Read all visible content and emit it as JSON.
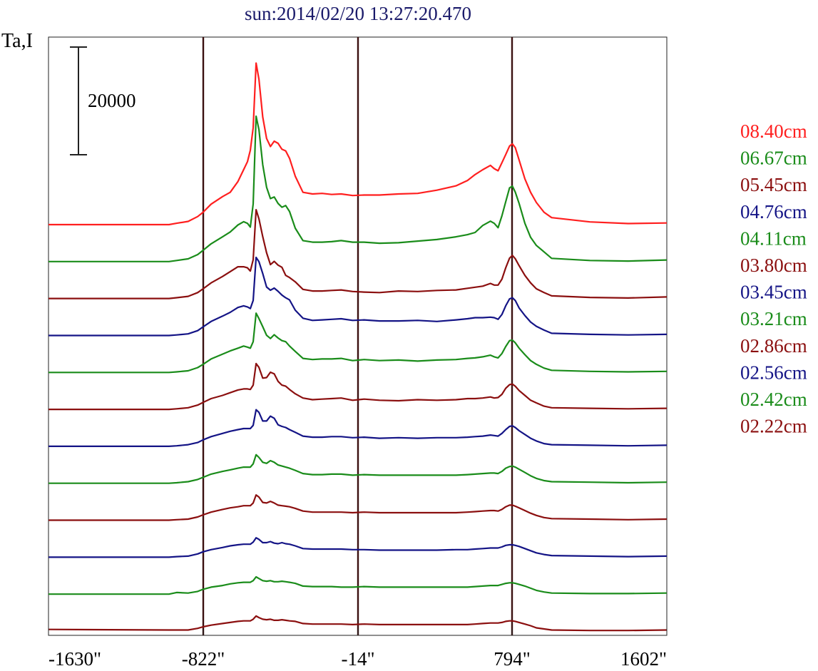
{
  "title": "sun:2014/02/20 13:27:20.470",
  "chart_data": {
    "type": "line",
    "title": "sun:2014/02/20 13:27:20.470",
    "ylabel": "Ta,I",
    "xlabel": "",
    "x_ticks": [
      "-1630\"",
      "-822\"",
      "-14\"",
      "794\"",
      "1602\""
    ],
    "x_tick_values": [
      -1630,
      -822,
      -14,
      794,
      1602
    ],
    "xlim": [
      -1630,
      1602
    ],
    "vertical_markers": [
      -822,
      -14,
      794
    ],
    "scale_bar": {
      "label": "20000",
      "value": 20000
    },
    "baseline_offset_between_series": 3000,
    "profile_x": [
      -1630,
      -1000,
      -960,
      -900,
      -850,
      -822,
      -780,
      -720,
      -680,
      -640,
      -610,
      -590,
      -575,
      -560,
      -545,
      -530,
      -510,
      -490,
      -470,
      -450,
      -430,
      -410,
      -390,
      -370,
      -340,
      -300,
      -250,
      -200,
      -150,
      -100,
      -40,
      20,
      100,
      200,
      300,
      400,
      500,
      560,
      600,
      640,
      680,
      700,
      720,
      740,
      760,
      780,
      795,
      810,
      830,
      860,
      890,
      920,
      960,
      1000,
      1200,
      1400,
      1602
    ],
    "series": [
      {
        "name": "08.40cm",
        "color": "#ff1f1f",
        "peak_a": 30000,
        "peak_b": 15000,
        "baseline": 0,
        "values": [
          0,
          0,
          250,
          600,
          1500,
          2300,
          3800,
          5200,
          6000,
          8000,
          10200,
          11700,
          13800,
          18000,
          30000,
          27000,
          20000,
          16000,
          14500,
          15500,
          15100,
          14000,
          13700,
          12300,
          9000,
          6000,
          5700,
          5800,
          5600,
          5700,
          5400,
          5500,
          5500,
          5700,
          5800,
          6400,
          7200,
          8200,
          9300,
          10200,
          11000,
          10400,
          10000,
          11500,
          13000,
          14600,
          15000,
          14300,
          12000,
          8500,
          6000,
          4100,
          2300,
          1300,
          500,
          200,
          300
        ]
      },
      {
        "name": "06.67cm",
        "color": "#1a8c1a",
        "peak_a": 27000,
        "peak_b": 14000,
        "baseline": 3000,
        "values": [
          0,
          0,
          200,
          500,
          1300,
          2100,
          3300,
          4600,
          5500,
          6800,
          7400,
          7100,
          6400,
          10700,
          27000,
          24500,
          18000,
          13800,
          11700,
          12000,
          10800,
          10100,
          10400,
          9300,
          6200,
          3900,
          3600,
          3600,
          3700,
          3900,
          3600,
          3600,
          3400,
          3500,
          3800,
          4100,
          4600,
          5000,
          5400,
          6700,
          7500,
          7100,
          6300,
          8500,
          11100,
          13700,
          14000,
          12900,
          10800,
          7100,
          4500,
          3000,
          1800,
          600,
          200,
          100,
          300
        ]
      },
      {
        "name": "05.45cm",
        "color": "#8b0f0f",
        "peak_a": 16500,
        "peak_b": 8000,
        "baseline": 6000,
        "values": [
          0,
          0,
          150,
          400,
          1100,
          1800,
          2900,
          4100,
          5000,
          5900,
          5900,
          5700,
          5100,
          7200,
          16500,
          14800,
          11500,
          8500,
          6300,
          6900,
          6200,
          5800,
          4300,
          3900,
          3100,
          1700,
          1400,
          1400,
          1500,
          1600,
          1300,
          1200,
          1100,
          1400,
          1300,
          1500,
          1600,
          1900,
          2100,
          2300,
          2800,
          2500,
          2500,
          3600,
          5700,
          7500,
          8000,
          7400,
          6100,
          4300,
          2900,
          1800,
          1100,
          500,
          200,
          100,
          300
        ]
      },
      {
        "name": "04.76cm",
        "color": "#141486",
        "peak_a": 14500,
        "peak_b": 7000,
        "baseline": 9000,
        "values": [
          0,
          0,
          100,
          300,
          900,
          1600,
          2600,
          3600,
          4300,
          5200,
          5500,
          5300,
          5000,
          6500,
          14500,
          13700,
          11500,
          9000,
          8400,
          8800,
          8200,
          7500,
          7000,
          6600,
          4700,
          3200,
          2800,
          2900,
          3000,
          3100,
          2800,
          2900,
          2700,
          2700,
          2800,
          2600,
          2900,
          3100,
          3300,
          3300,
          3400,
          3300,
          3000,
          3900,
          5500,
          6800,
          7000,
          6500,
          5100,
          3700,
          2500,
          1700,
          1000,
          400,
          200,
          100,
          200
        ]
      },
      {
        "name": "04.11cm",
        "color": "#1a8c1a",
        "peak_a": 11000,
        "peak_b": 6000,
        "baseline": 12000,
        "values": [
          0,
          0,
          100,
          300,
          900,
          1500,
          2500,
          3400,
          4000,
          4500,
          4900,
          4700,
          4500,
          5700,
          11000,
          10000,
          8500,
          6900,
          6300,
          7000,
          6400,
          5900,
          5700,
          4900,
          3900,
          2600,
          2400,
          2500,
          2500,
          2600,
          2200,
          2400,
          2200,
          2300,
          2100,
          2300,
          2400,
          2600,
          2700,
          2900,
          3200,
          2900,
          2700,
          3500,
          4800,
          5900,
          6000,
          5500,
          4500,
          3300,
          2200,
          1500,
          800,
          400,
          200,
          100,
          200
        ]
      },
      {
        "name": "03.80cm",
        "color": "#8b0f0f",
        "peak_a": 8500,
        "peak_b": 4700,
        "baseline": 15000,
        "values": [
          0,
          0,
          100,
          300,
          800,
          1300,
          2000,
          2600,
          3100,
          3600,
          3800,
          3800,
          3700,
          4500,
          8500,
          7800,
          5800,
          5900,
          6900,
          6600,
          5200,
          4500,
          4300,
          3700,
          2900,
          2100,
          1800,
          1900,
          2000,
          2100,
          1700,
          1900,
          1700,
          1600,
          1800,
          1700,
          1800,
          2000,
          2000,
          2100,
          2300,
          2100,
          2200,
          2800,
          3900,
          4600,
          4700,
          4300,
          3500,
          2600,
          1700,
          1200,
          600,
          300,
          200,
          100,
          200
        ]
      },
      {
        "name": "03.45cm",
        "color": "#141486",
        "peak_a": 6800,
        "peak_b": 3800,
        "baseline": 18000,
        "values": [
          0,
          0,
          100,
          300,
          700,
          1200,
          1800,
          2400,
          2800,
          3100,
          3300,
          3300,
          3300,
          3900,
          6800,
          6300,
          4700,
          4700,
          5600,
          5200,
          4000,
          3700,
          3500,
          3100,
          2600,
          1900,
          1700,
          1700,
          1800,
          1800,
          1600,
          1700,
          1500,
          1600,
          1500,
          1600,
          1600,
          1700,
          1800,
          1900,
          2100,
          2000,
          1900,
          2400,
          3100,
          3700,
          3800,
          3500,
          2900,
          2200,
          1500,
          1000,
          500,
          300,
          200,
          100,
          200
        ]
      },
      {
        "name": "03.21cm",
        "color": "#1a8c1a",
        "peak_a": 5300,
        "peak_b": 3200,
        "baseline": 21000,
        "values": [
          0,
          0,
          100,
          300,
          700,
          1100,
          1700,
          2200,
          2500,
          2800,
          3000,
          3000,
          3000,
          3600,
          5300,
          4800,
          3900,
          3700,
          4200,
          3900,
          3400,
          3200,
          3000,
          2800,
          2400,
          1800,
          1600,
          1600,
          1700,
          1700,
          1500,
          1600,
          1500,
          1500,
          1500,
          1500,
          1500,
          1600,
          1700,
          1800,
          1900,
          1900,
          1800,
          2200,
          2800,
          3100,
          3200,
          3000,
          2600,
          2000,
          1400,
          900,
          500,
          300,
          200,
          100,
          200
        ]
      },
      {
        "name": "02.86cm",
        "color": "#8b0f0f",
        "peak_a": 4700,
        "peak_b": 2800,
        "baseline": 24000,
        "values": [
          0,
          0,
          100,
          200,
          600,
          1000,
          1500,
          2000,
          2300,
          2500,
          2700,
          2700,
          2700,
          3200,
          4700,
          4300,
          3300,
          3200,
          3500,
          3200,
          2800,
          2700,
          2600,
          2500,
          2200,
          1700,
          1500,
          1500,
          1500,
          1500,
          1400,
          1500,
          1400,
          1400,
          1400,
          1400,
          1400,
          1500,
          1600,
          1700,
          1800,
          1800,
          1700,
          2000,
          2500,
          2800,
          2800,
          2600,
          2300,
          1800,
          1300,
          900,
          500,
          300,
          200,
          100,
          200
        ]
      },
      {
        "name": "02.56cm",
        "color": "#141486",
        "peak_a": 3600,
        "peak_b": 2300,
        "baseline": 27000,
        "values": [
          0,
          0,
          100,
          200,
          600,
          1000,
          1400,
          1800,
          2100,
          2300,
          2400,
          2400,
          2400,
          2800,
          3600,
          3300,
          2700,
          2700,
          2900,
          2600,
          2500,
          2700,
          2500,
          2400,
          2100,
          1600,
          1500,
          1500,
          1500,
          1500,
          1400,
          1400,
          1300,
          1300,
          1300,
          1300,
          1400,
          1400,
          1500,
          1600,
          1700,
          1700,
          1700,
          1900,
          2200,
          2300,
          2300,
          2200,
          2000,
          1600,
          1200,
          800,
          500,
          300,
          200,
          100,
          200
        ]
      },
      {
        "name": "02.42cm",
        "color": "#1a8c1a",
        "peak_a": 3200,
        "peak_b": 2100,
        "baseline": 30000,
        "values": [
          0,
          0,
          300,
          200,
          500,
          900,
          1300,
          1600,
          1900,
          2100,
          2200,
          2200,
          2200,
          2500,
          3200,
          2900,
          2500,
          2400,
          2500,
          2300,
          2300,
          2400,
          2300,
          2200,
          2000,
          1500,
          1400,
          1400,
          1400,
          1300,
          1300,
          1400,
          1300,
          1300,
          1300,
          1300,
          1300,
          1300,
          1400,
          1500,
          1600,
          1600,
          1600,
          1800,
          2000,
          2100,
          2100,
          2000,
          1800,
          1500,
          1100,
          700,
          400,
          200,
          100,
          100,
          200
        ]
      },
      {
        "name": "02.22cm",
        "color": "#8b0f0f",
        "peak_a": 2800,
        "peak_b": 1900,
        "baseline": 33000,
        "values": [
          300,
          200,
          200,
          200,
          500,
          800,
          1100,
          1400,
          1600,
          1800,
          1900,
          1900,
          1900,
          2200,
          2800,
          2500,
          2200,
          2100,
          2200,
          2000,
          2000,
          2100,
          2000,
          1900,
          1800,
          1400,
          1300,
          1300,
          1300,
          1300,
          1200,
          1300,
          1200,
          1200,
          1200,
          1200,
          1200,
          1200,
          1300,
          1400,
          1500,
          1500,
          1500,
          1600,
          1800,
          1900,
          1900,
          1800,
          1600,
          1300,
          1000,
          600,
          400,
          200,
          100,
          100,
          200
        ]
      }
    ]
  }
}
